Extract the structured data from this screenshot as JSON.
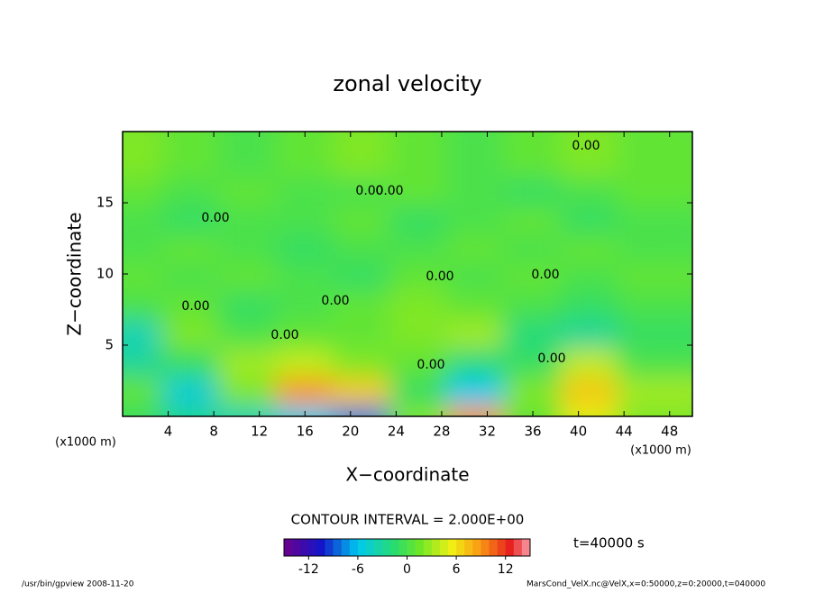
{
  "chart_data": {
    "type": "contour",
    "title": "zonal velocity",
    "xlabel": "X−coordinate",
    "ylabel": "Z−coordinate",
    "x_unit": "(x1000 m)",
    "y_unit": "(x1000 m)",
    "xlim": [
      0,
      50
    ],
    "ylim": [
      0,
      20
    ],
    "xticks": [
      4,
      8,
      12,
      16,
      20,
      24,
      28,
      32,
      36,
      40,
      44,
      48
    ],
    "yticks": [
      5,
      10,
      15
    ],
    "x": [
      2.5,
      7.5,
      12.5,
      17.5,
      22.5,
      27.5,
      32.5,
      37.5,
      42.5,
      47.5
    ],
    "y": [
      1,
      3,
      5,
      7,
      9,
      11,
      13,
      15,
      17,
      19
    ],
    "z": [
      [
        -1,
        -3,
        -4,
        -6,
        -8,
        2,
        9,
        1,
        5,
        2
      ],
      [
        1,
        -5,
        2,
        9,
        7,
        -1,
        -6,
        2,
        7,
        3
      ],
      [
        -3,
        -1,
        3,
        4,
        2,
        1,
        -2,
        -1,
        4,
        0
      ],
      [
        -4,
        2,
        0,
        1,
        1,
        2,
        3,
        -2,
        -3,
        -1
      ],
      [
        0,
        1,
        -1,
        0,
        1,
        2,
        1,
        0,
        -1,
        0
      ],
      [
        1,
        0,
        1,
        0,
        -1,
        1,
        0,
        1,
        0,
        1
      ],
      [
        0,
        1,
        0,
        -1,
        0,
        0,
        1,
        0,
        1,
        0
      ],
      [
        0,
        -1,
        0,
        0,
        1,
        -1,
        0,
        1,
        -1,
        0
      ],
      [
        1,
        0,
        1,
        0,
        0,
        1,
        0,
        -1,
        0,
        1
      ],
      [
        2,
        1,
        0,
        1,
        2,
        1,
        0,
        1,
        2,
        1
      ]
    ],
    "contour_labels": [
      "0.00",
      "0.00",
      "0.00",
      "0.00",
      "0.00",
      "0.00",
      "0.00",
      "0.00",
      "0.00",
      "0.00",
      "0.00"
    ],
    "contour_interval": "CONTOUR INTERVAL = 2.000E+00",
    "time_label": "t=40000 s",
    "colorbar": {
      "lim": [
        -15,
        15
      ],
      "ticks": [
        -12,
        -6,
        0,
        6,
        12
      ]
    },
    "footer_left": "/usr/bin/gpview  2008-11-20",
    "footer_right": "MarsCond_VelX.nc@VelX,x=0:50000,z=0:20000,t=040000"
  }
}
